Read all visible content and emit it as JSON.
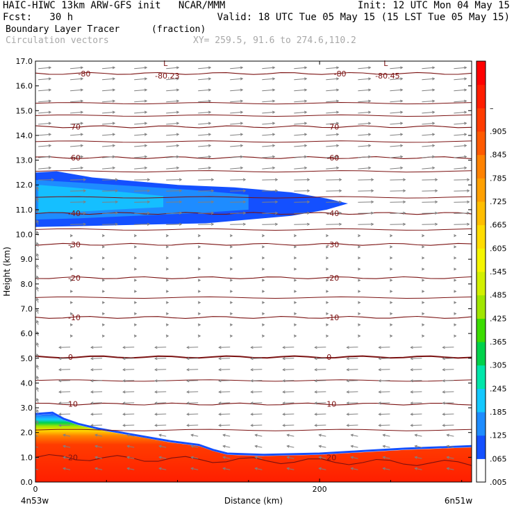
{
  "header": {
    "line1_left": "HAIC-HIWC 13km ARW-GFS init   NCAR/MMM",
    "line1_right": "Init: 12 UTC Mon 04 May 15",
    "line2_left": "Fcst:   30 h",
    "line2_right": "Valid: 18 UTC Tue 05 May 15 (15 LST Tue 05 May 15)",
    "field_name": "Boundary Layer Tracer",
    "field_units": "(fraction)",
    "vector_name": "Circulation vectors",
    "xy_info": "XY= 259.5, 91.6 to 274.6,110.2"
  },
  "axes": {
    "ylabel": "Height (km)",
    "xlabel": "Distance (km)",
    "x_left_label": "4n53w",
    "x_right_label": "6n51w"
  },
  "colors": {
    "contour": "#7a1010",
    "vector": "#808080",
    "red": "#ff2200",
    "blue": "#1450ff"
  },
  "chart_data": {
    "type": "heatmap",
    "title": "Boundary Layer Tracer",
    "xlabel": "Distance (km)",
    "ylabel": "Height (km)",
    "xlim": [
      0,
      307
    ],
    "ylim": [
      0,
      17
    ],
    "x_ticks": [
      "0",
      "200"
    ],
    "y_ticks": [
      "0.0",
      "1.0",
      "2.0",
      "3.0",
      "4.0",
      "5.0",
      "6.0",
      "7.0",
      "8.0",
      "9.0",
      "10.0",
      "11.0",
      "12.0",
      "13.0",
      "14.0",
      "15.0",
      "16.0",
      "17.0"
    ],
    "colorbar_labels": [
      ".005",
      ".065",
      ".125",
      ".185",
      ".245",
      ".305",
      ".365",
      ".425",
      ".485",
      ".545",
      ".605",
      ".665",
      ".725",
      ".785",
      ".845",
      ".905",
      "–"
    ],
    "colorbar_colors": [
      "#ffffff",
      "#1450ff",
      "#1e8cff",
      "#14c8ff",
      "#00e6aa",
      "#00d24b",
      "#3cdc00",
      "#a0e600",
      "#d2f000",
      "#f5f500",
      "#ffdc00",
      "#ffbe00",
      "#ffa000",
      "#ff8200",
      "#ff5a00",
      "#ff3c00",
      "#ff1e00",
      "#ff0000"
    ],
    "temperature_contours_c": [
      {
        "value": "20",
        "height_km": 1.0
      },
      {
        "value": "10",
        "height_km": 3.15
      },
      {
        "value": "0",
        "height_km": 5.05
      },
      {
        "value": "-10",
        "height_km": 6.65
      },
      {
        "value": "-20",
        "height_km": 8.25
      },
      {
        "value": "-30",
        "height_km": 9.6
      },
      {
        "value": "-40",
        "height_km": 10.85
      },
      {
        "value": "-60",
        "height_km": 13.1
      },
      {
        "value": "-70",
        "height_km": 14.35
      },
      {
        "value": "-80",
        "height_km": 16.5
      }
    ],
    "minimum_labels": [
      {
        "letter": "L",
        "value": "-80.23",
        "x_km": 90
      },
      {
        "letter": "L",
        "value": "-80.45",
        "x_km": 245
      }
    ],
    "tracer_layers": [
      {
        "name": "boundary_layer",
        "top_km_left": 2.7,
        "top_km_right": 1.4,
        "base_fraction": "0.905",
        "top_fraction": "0.065"
      },
      {
        "name": "upper_plume",
        "bottom_km": 10.3,
        "top_km": 12.5,
        "x_extent_km": [
          0,
          220
        ],
        "max_fraction": "0.185"
      }
    ]
  }
}
